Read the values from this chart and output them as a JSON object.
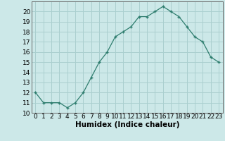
{
  "x": [
    0,
    1,
    2,
    3,
    4,
    5,
    6,
    7,
    8,
    9,
    10,
    11,
    12,
    13,
    14,
    15,
    16,
    17,
    18,
    19,
    20,
    21,
    22,
    23
  ],
  "y": [
    12,
    11,
    11,
    11,
    10.5,
    11,
    12,
    13.5,
    15,
    16,
    17.5,
    18,
    18.5,
    19.5,
    19.5,
    20,
    20.5,
    20,
    19.5,
    18.5,
    17.5,
    17,
    15.5,
    15
  ],
  "line_color": "#2e7d6e",
  "marker": "+",
  "bg_color": "#cce8e8",
  "grid_color": "#aacfcf",
  "xlabel": "Humidex (Indice chaleur)",
  "xlim": [
    -0.5,
    23.5
  ],
  "ylim": [
    10,
    21
  ],
  "yticks": [
    10,
    11,
    12,
    13,
    14,
    15,
    16,
    17,
    18,
    19,
    20
  ],
  "xtick_labels": [
    "0",
    "1",
    "2",
    "3",
    "4",
    "5",
    "6",
    "7",
    "8",
    "9",
    "10",
    "11",
    "12",
    "13",
    "14",
    "15",
    "16",
    "17",
    "18",
    "19",
    "20",
    "21",
    "22",
    "23"
  ],
  "xlabel_fontsize": 7.5,
  "tick_fontsize": 6.5
}
